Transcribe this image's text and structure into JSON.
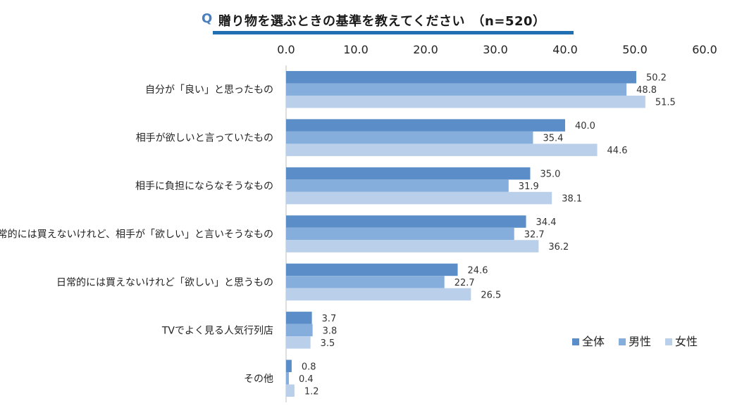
{
  "chart_data": {
    "type": "bar",
    "orientation": "horizontal",
    "title_prefix": "Q",
    "title": "贈り物を選ぶときの基準を教えてください　（n=520）",
    "xlim": [
      0,
      60
    ],
    "ticks": [
      "0.0",
      "10.0",
      "20.0",
      "30.0",
      "40.0",
      "50.0",
      "60.0"
    ],
    "tick_values": [
      0,
      10,
      20,
      30,
      40,
      50,
      60
    ],
    "categories": [
      "自分が「良い」と思ったもの",
      "相手が欲しいと言っていたもの",
      "相手に負担にならなそうなもの",
      "日常的には買えないけれど、相手が「欲しい」と言いそうなもの",
      "日常的には買えないけれど「欲しい」と思うもの",
      "TVでよく見る人気行列店",
      "その他"
    ],
    "series": [
      {
        "name": "全体",
        "color": "#5b8ec8",
        "values": [
          50.2,
          40.0,
          35.0,
          34.4,
          24.6,
          3.7,
          0.8
        ]
      },
      {
        "name": "男性",
        "color": "#86aedc",
        "values": [
          48.8,
          35.4,
          31.9,
          32.7,
          22.7,
          3.8,
          0.4
        ]
      },
      {
        "name": "女性",
        "color": "#b9cfea",
        "values": [
          51.5,
          44.6,
          38.1,
          36.2,
          26.5,
          3.5,
          1.2
        ]
      }
    ],
    "value_labels": [
      [
        "50.2",
        "40.0",
        "35.0",
        "34.4",
        "24.6",
        "3.7",
        "0.8"
      ],
      [
        "48.8",
        "35.4",
        "31.9",
        "32.7",
        "22.7",
        "3.8",
        "0.4"
      ],
      [
        "51.5",
        "44.6",
        "38.1",
        "36.2",
        "26.5",
        "3.5",
        "1.2"
      ]
    ],
    "legend_position": "bottom-right"
  }
}
